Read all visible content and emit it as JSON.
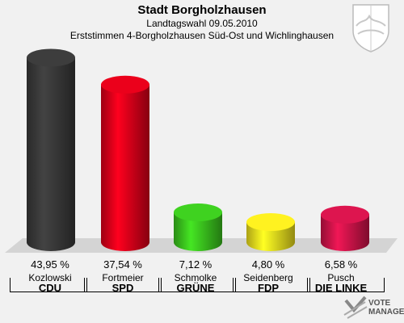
{
  "header": {
    "title": "Stadt Borgholzhausen",
    "subtitle": "Landtagswahl 09.05.2010",
    "description": "Erststimmen 4-Borgholzhausen Süd-Ost und Wichlinghausen"
  },
  "chart_data": {
    "type": "bar",
    "title": "Stadt Borgholzhausen",
    "subtitle": "Landtagswahl 09.05.2010",
    "categories": [
      "CDU",
      "SPD",
      "GRÜNE",
      "FDP",
      "DIE LINKE"
    ],
    "candidates": [
      "Kozlowski",
      "Fortmeier",
      "Schmolke",
      "Seidenberg",
      "Pusch"
    ],
    "values": [
      43.95,
      37.54,
      7.12,
      4.8,
      6.58
    ],
    "value_labels": [
      "43,95 %",
      "37,54 %",
      "7,12 %",
      "4,80 %",
      "6,58 %"
    ],
    "colors": [
      "#3a3a3a",
      "#e0001a",
      "#3cc81e",
      "#f5e61e",
      "#d2144b"
    ],
    "ylim": [
      0,
      45
    ]
  },
  "logo": {
    "line1": "VOTE",
    "line2": "MANAGER"
  }
}
